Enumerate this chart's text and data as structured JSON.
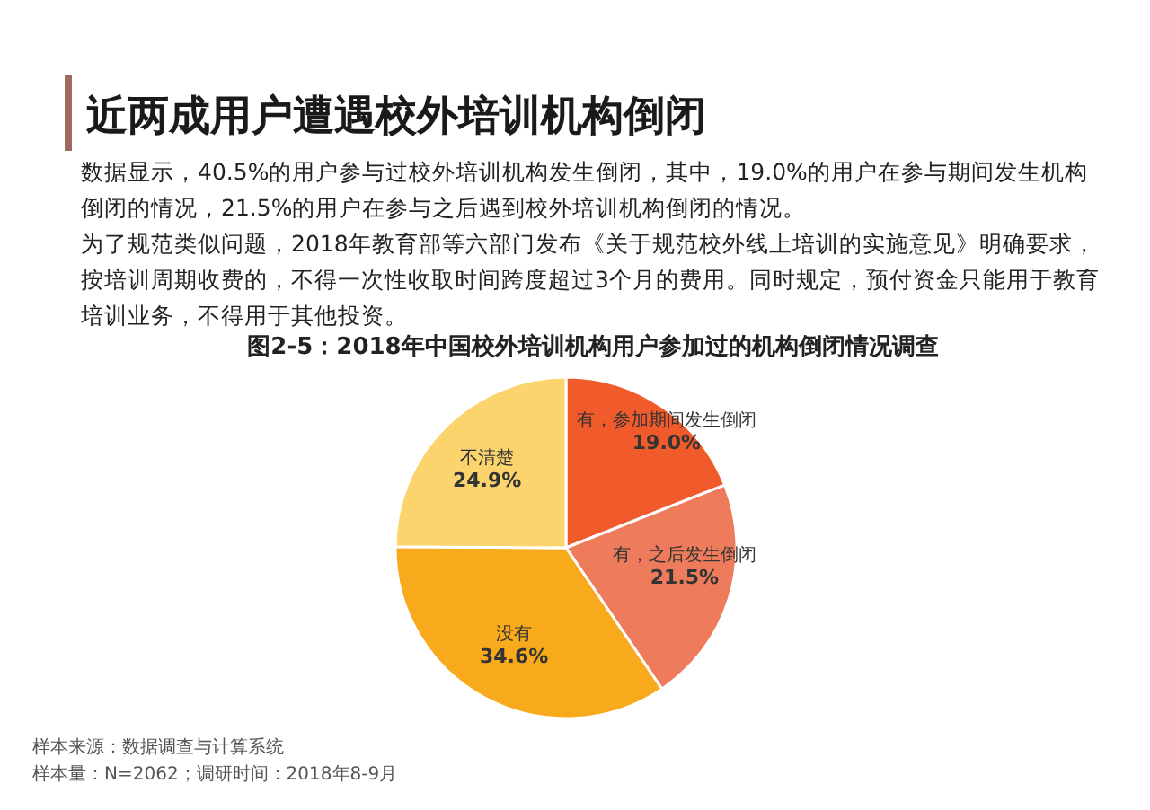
{
  "chart_data": {
    "type": "pie",
    "title": "近两成用户遭遇校外培训机构倒闭",
    "subtitle": "数据显示，40.5%的用户参与过校外培训机构发生倒闭，其中，19.0%的用户在参与期间发生机构倒闭的情况，21.5%的用户在参与之后遇到校外培训机构倒闭的情况。",
    "annotations": [
      "为了规范类似问题，2018年教育部等六部门发布《关于规范校外线上培训的实施意见》明确要求，按培训周期收费的，不得一次性收取时间跨度超过3个月的费用。同时规定，预付资金只能用于教育培训业务，不得用于其他投资。",
      "图2-5：2018年中国校外培训机构用户参加过的机构倒闭情况调查",
      "样本来源：数据调查与计算系统",
      "样本量：N=2062；调研时间：2018年8-9月"
    ],
    "categories": [
      "有，参加期间发生倒闭",
      "有，之后发生倒闭",
      "没有",
      "不清楚"
    ],
    "values": [
      19.0,
      21.5,
      34.6,
      24.9
    ],
    "value_labels": [
      "19.0%",
      "21.5%",
      "34.6%",
      "24.9%"
    ],
    "colors": [
      "#f15a2b",
      "#ee7c5c",
      "#f8aa1c",
      "#fcd46e"
    ],
    "legend": false
  }
}
